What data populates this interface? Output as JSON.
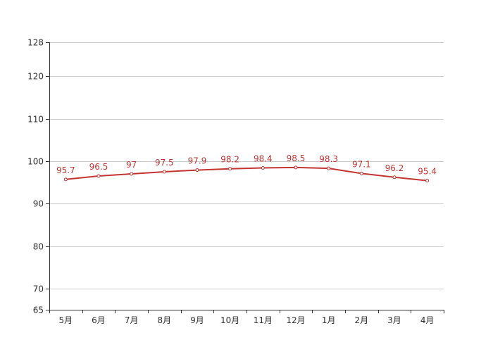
{
  "chart_data": {
    "type": "line",
    "categories": [
      "5月",
      "6月",
      "7月",
      "8月",
      "9月",
      "10月",
      "11月",
      "12月",
      "1月",
      "2月",
      "3月",
      "4月"
    ],
    "series": [
      {
        "values": [
          95.7,
          96.5,
          97,
          97.5,
          97.9,
          98.2,
          98.4,
          98.5,
          98.3,
          97.1,
          96.2,
          95.4
        ]
      }
    ],
    "ylim": [
      65,
      128
    ],
    "yticks": [
      65,
      70,
      80,
      90,
      100,
      110,
      120,
      128
    ],
    "grid": true,
    "line_color": "#c23531",
    "point_fill": "#ffffff",
    "title": "",
    "xlabel": "",
    "ylabel": ""
  }
}
